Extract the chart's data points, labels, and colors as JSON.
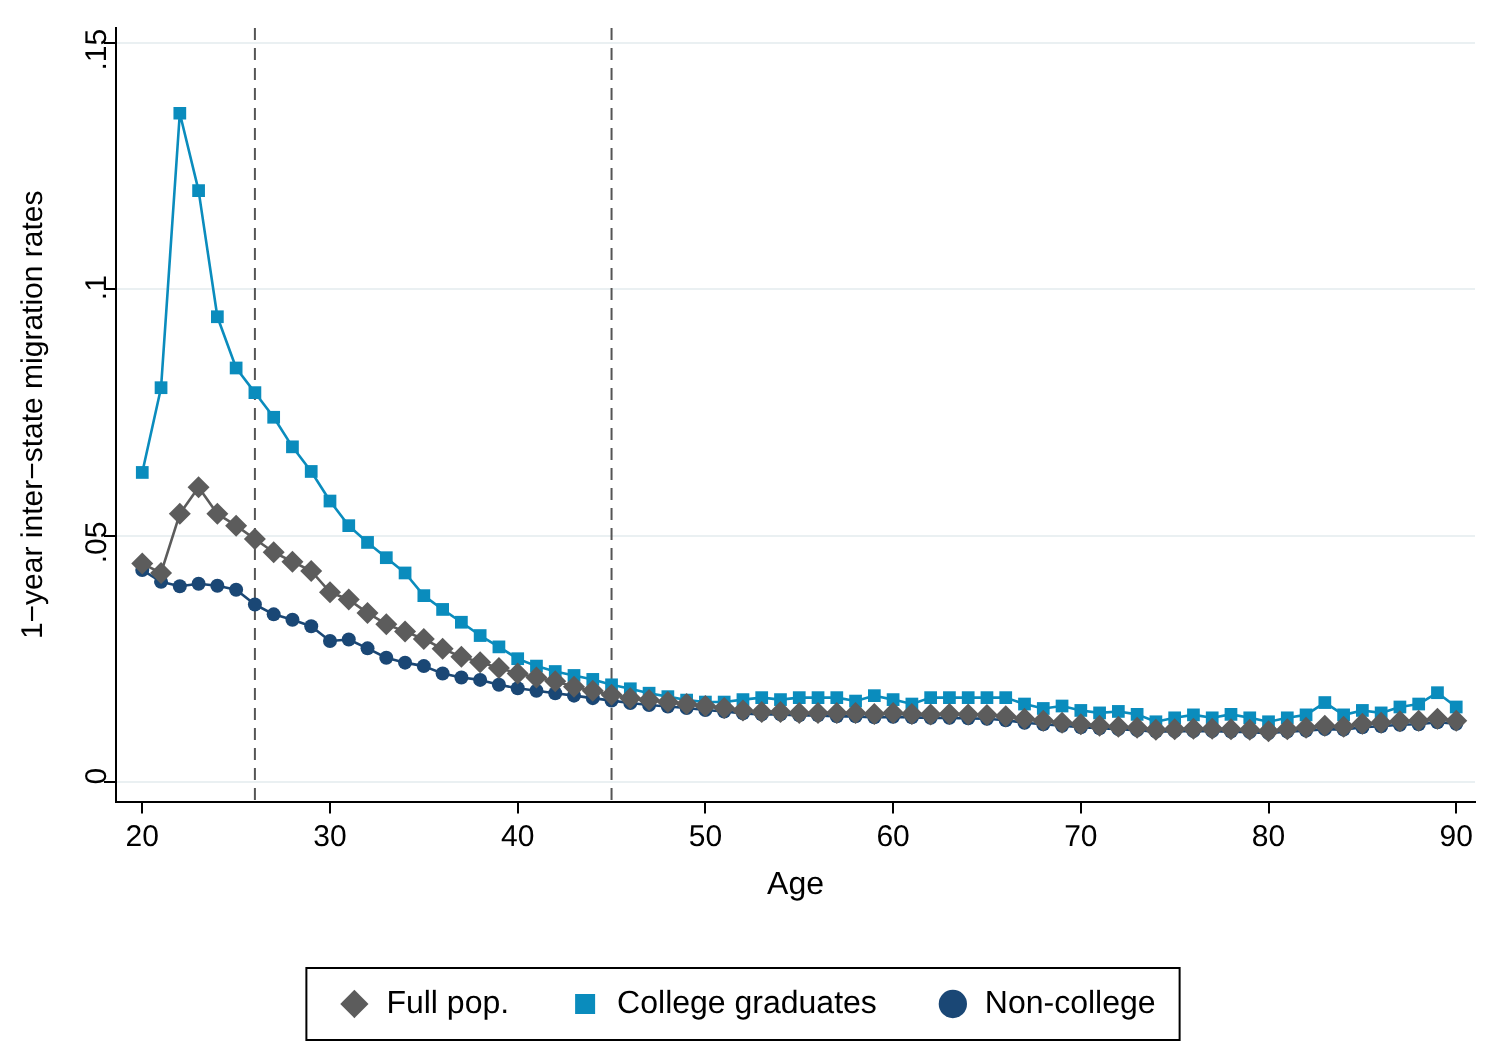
{
  "chart_data": {
    "type": "line",
    "xlabel": "Age",
    "ylabel": "1−year inter−state migration rates",
    "x": [
      20,
      21,
      22,
      23,
      24,
      25,
      26,
      27,
      28,
      29,
      30,
      31,
      32,
      33,
      34,
      35,
      36,
      37,
      38,
      39,
      40,
      41,
      42,
      43,
      44,
      45,
      46,
      47,
      48,
      49,
      50,
      51,
      52,
      53,
      54,
      55,
      56,
      57,
      58,
      59,
      60,
      61,
      62,
      63,
      64,
      65,
      66,
      67,
      68,
      69,
      70,
      71,
      72,
      73,
      74,
      75,
      76,
      77,
      78,
      79,
      80,
      81,
      82,
      83,
      84,
      85,
      86,
      87,
      88,
      89,
      90
    ],
    "xlim": [
      18.6,
      91
    ],
    "xticks": [
      20,
      30,
      40,
      50,
      60,
      70,
      80,
      90
    ],
    "ylim": [
      -0.004,
      0.153
    ],
    "yticks": [
      0,
      {
        "value": 0.05,
        "label": ".05"
      },
      {
        "value": 0.1,
        "label": ".1"
      },
      {
        "value": 0.15,
        "label": ".15"
      }
    ],
    "grid": "y",
    "legend": "bottom",
    "line_style": "solid",
    "ref_lines": [
      {
        "axis": "x",
        "value": 26,
        "line_style": "dashed",
        "color": "#555555"
      },
      {
        "axis": "x",
        "value": 45,
        "line_style": "dashed",
        "color": "#555555"
      }
    ],
    "series": [
      {
        "name": "Full pop.",
        "color": "#5c5c5c",
        "marker": "diamond",
        "values": [
          0.0443,
          0.0424,
          0.0544,
          0.0598,
          0.0544,
          0.052,
          0.0493,
          0.0466,
          0.0447,
          0.0428,
          0.0385,
          0.037,
          0.0343,
          0.032,
          0.0305,
          0.029,
          0.027,
          0.0254,
          0.0243,
          0.0231,
          0.022,
          0.0212,
          0.0204,
          0.0193,
          0.0185,
          0.0177,
          0.017,
          0.0166,
          0.0162,
          0.0158,
          0.0154,
          0.015,
          0.0145,
          0.0142,
          0.0142,
          0.014,
          0.014,
          0.014,
          0.014,
          0.0138,
          0.014,
          0.0138,
          0.0137,
          0.0138,
          0.0137,
          0.0136,
          0.0133,
          0.0128,
          0.0124,
          0.012,
          0.0117,
          0.0114,
          0.0112,
          0.011,
          0.0106,
          0.0107,
          0.0108,
          0.0108,
          0.0107,
          0.0106,
          0.0103,
          0.0107,
          0.011,
          0.0114,
          0.0112,
          0.0118,
          0.012,
          0.0123,
          0.0124,
          0.0128,
          0.0124
        ]
      },
      {
        "name": "College graduates",
        "color": "#0a8cbd",
        "marker": "square",
        "values": [
          0.0628,
          0.08,
          0.1357,
          0.12,
          0.0944,
          0.084,
          0.079,
          0.074,
          0.068,
          0.063,
          0.057,
          0.052,
          0.0486,
          0.0455,
          0.0424,
          0.0378,
          0.035,
          0.0324,
          0.0297,
          0.0274,
          0.025,
          0.0235,
          0.0224,
          0.0216,
          0.0208,
          0.0197,
          0.0189,
          0.018,
          0.0173,
          0.0166,
          0.0162,
          0.0162,
          0.0167,
          0.0171,
          0.0167,
          0.0171,
          0.0171,
          0.0171,
          0.0164,
          0.0175,
          0.0167,
          0.0158,
          0.0171,
          0.0171,
          0.0171,
          0.0171,
          0.0171,
          0.0158,
          0.0149,
          0.0154,
          0.0145,
          0.014,
          0.0143,
          0.0137,
          0.0122,
          0.013,
          0.0136,
          0.013,
          0.0137,
          0.013,
          0.0122,
          0.013,
          0.0136,
          0.0161,
          0.0136,
          0.0145,
          0.014,
          0.0152,
          0.0158,
          0.0181,
          0.0152
        ]
      },
      {
        "name": "Non-college",
        "color": "#1a4775",
        "marker": "circle",
        "values": [
          0.043,
          0.0406,
          0.0397,
          0.0402,
          0.0398,
          0.039,
          0.036,
          0.034,
          0.0329,
          0.0316,
          0.0286,
          0.0289,
          0.0271,
          0.0252,
          0.0242,
          0.0235,
          0.022,
          0.0212,
          0.0207,
          0.0197,
          0.019,
          0.0185,
          0.018,
          0.0175,
          0.017,
          0.0165,
          0.016,
          0.0156,
          0.0153,
          0.015,
          0.0146,
          0.0143,
          0.0139,
          0.0137,
          0.0137,
          0.0135,
          0.0135,
          0.0133,
          0.0133,
          0.0131,
          0.0132,
          0.0131,
          0.013,
          0.013,
          0.0129,
          0.0128,
          0.0125,
          0.012,
          0.0117,
          0.0114,
          0.0111,
          0.0109,
          0.0107,
          0.0105,
          0.0102,
          0.0103,
          0.0103,
          0.0103,
          0.0102,
          0.0101,
          0.0099,
          0.0102,
          0.0104,
          0.0107,
          0.0106,
          0.0111,
          0.0113,
          0.0116,
          0.0117,
          0.0121,
          0.0118
        ]
      }
    ]
  }
}
